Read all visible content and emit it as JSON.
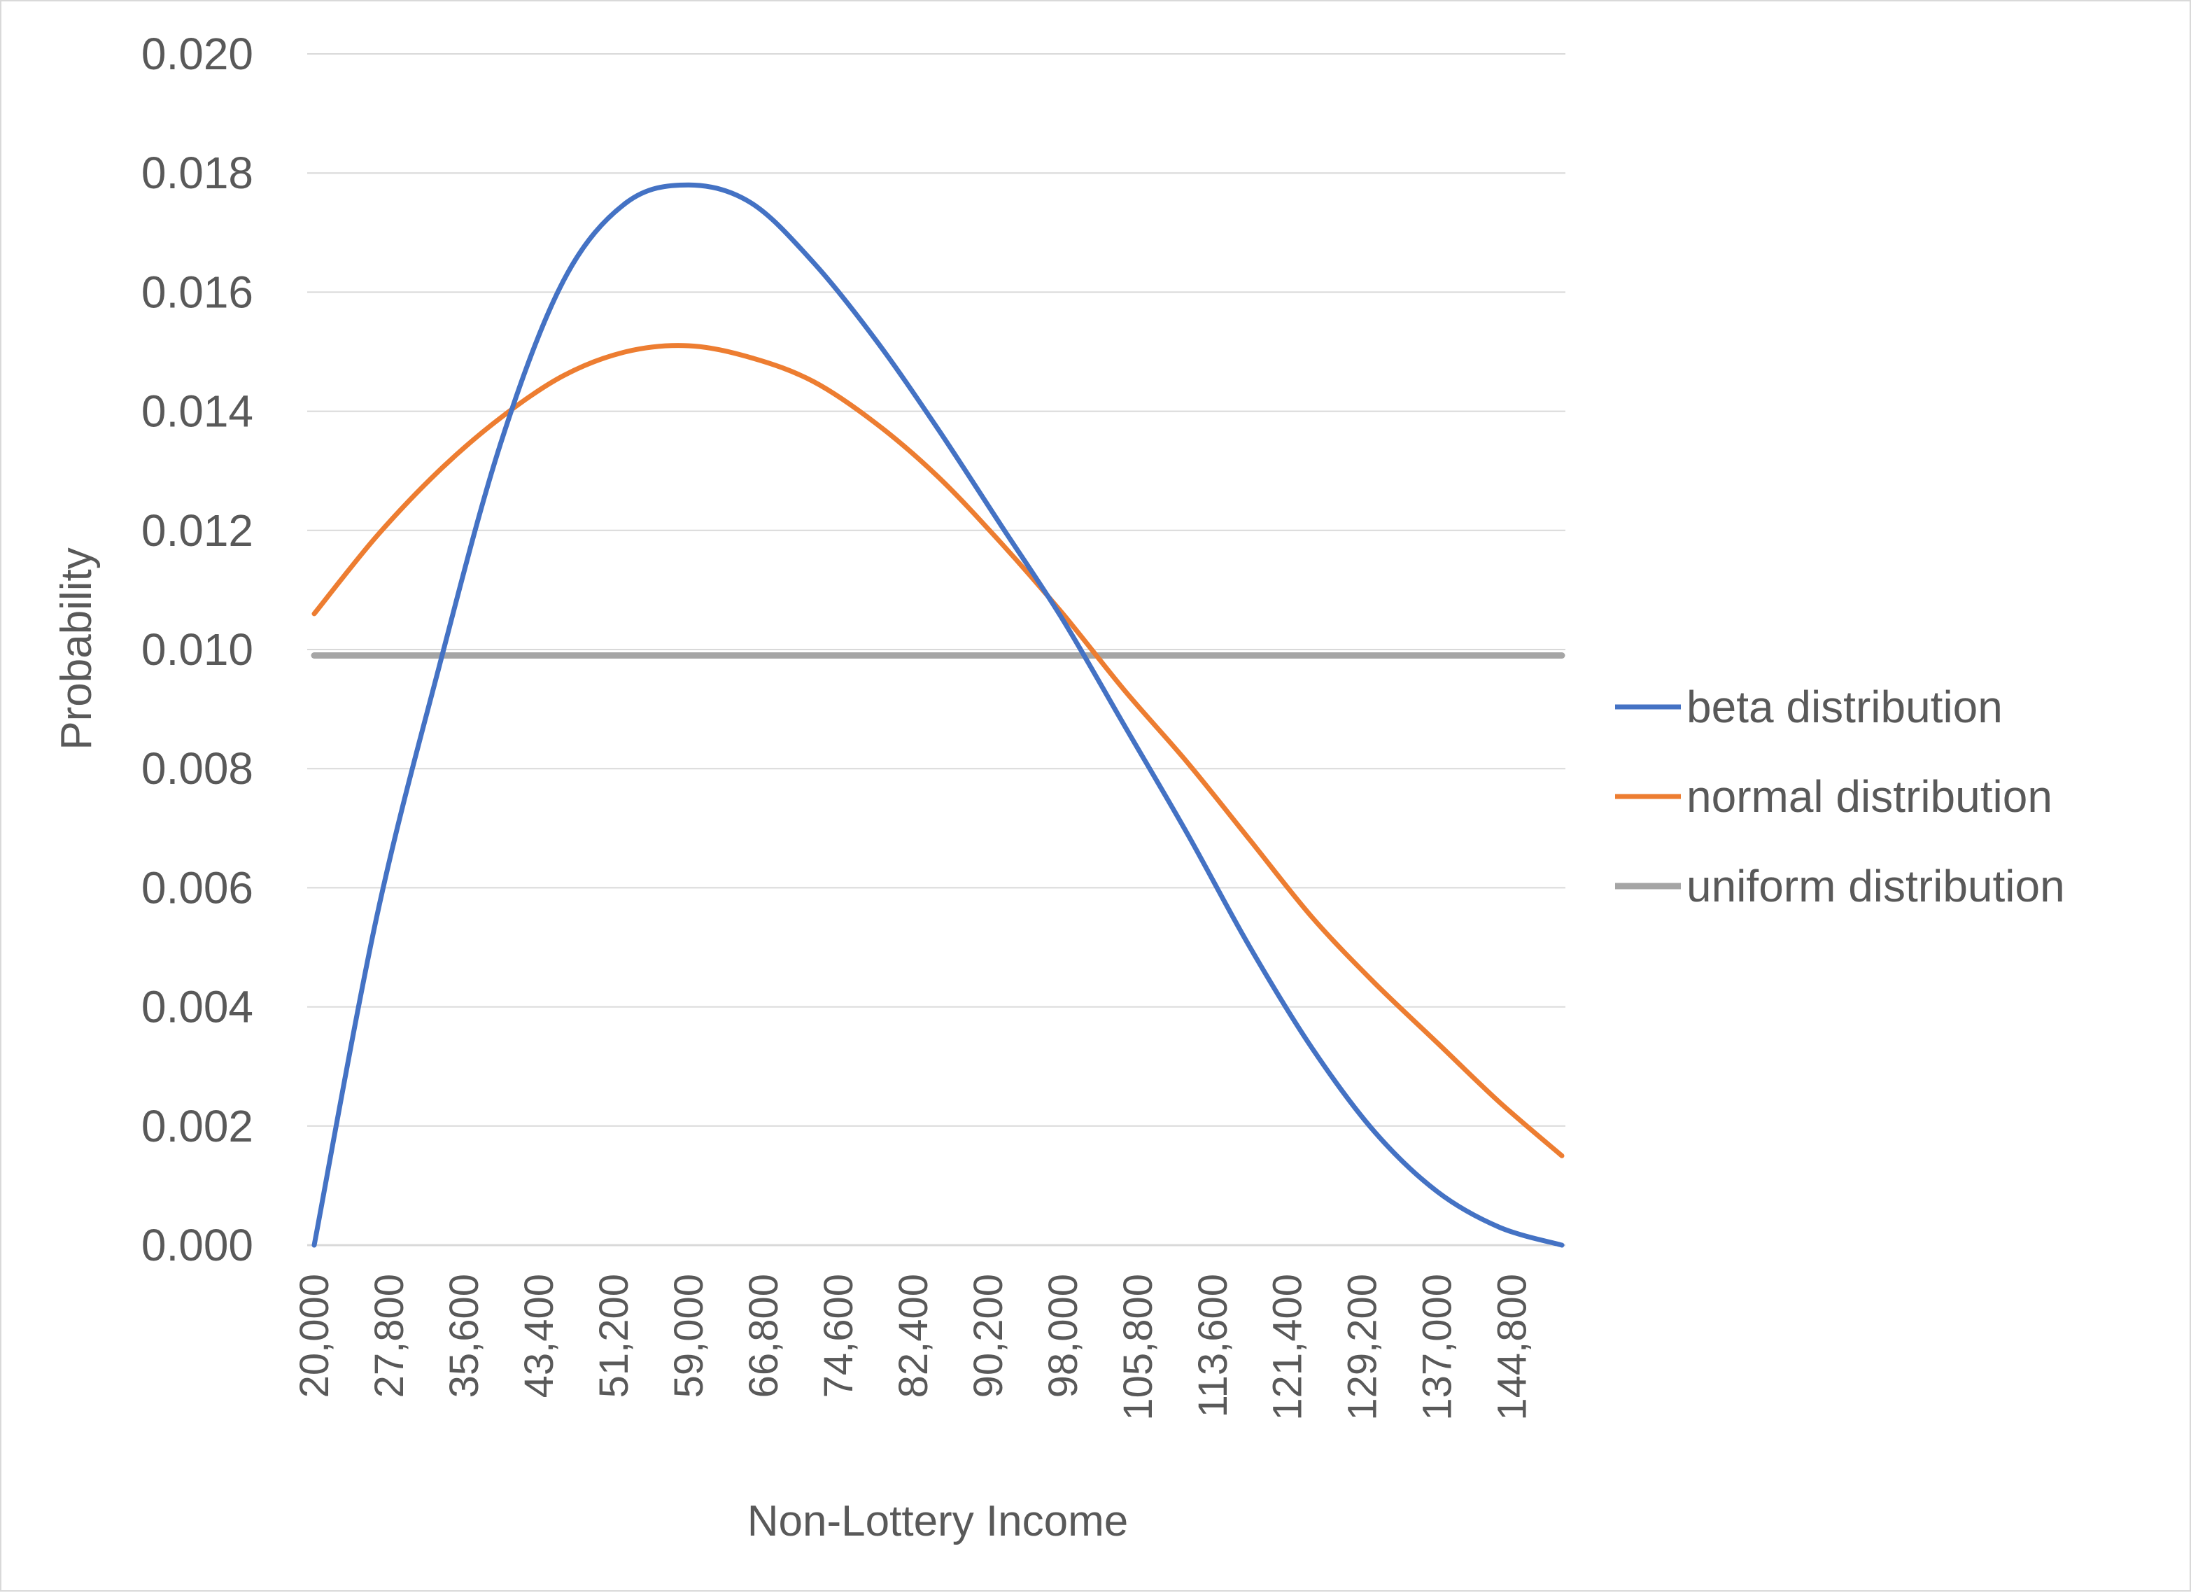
{
  "chart_data": {
    "type": "line",
    "title": "",
    "xlabel": "Non-Lottery Income",
    "ylabel": "Probability",
    "ylim": [
      0,
      0.02
    ],
    "yticks": [
      "0.000",
      "0.002",
      "0.004",
      "0.006",
      "0.008",
      "0.010",
      "0.012",
      "0.014",
      "0.016",
      "0.018",
      "0.020"
    ],
    "xlim": [
      20000,
      150000
    ],
    "xticks": [
      "20,000",
      "27,800",
      "35,600",
      "43,400",
      "51,200",
      "59,000",
      "66,800",
      "74,600",
      "82,400",
      "90,200",
      "98,000",
      "105,800",
      "113,600",
      "121,400",
      "129,200",
      "137,000",
      "144,800"
    ],
    "grid": true,
    "legend_position": "right",
    "x": [
      20000,
      26500,
      33000,
      39500,
      46000,
      52500,
      59000,
      65500,
      72000,
      78500,
      85000,
      91500,
      98000,
      104500,
      111000,
      117500,
      124000,
      130500,
      137000,
      143500,
      150000
    ],
    "series": [
      {
        "name": "beta distribution",
        "color": "#4472C4",
        "values": [
          0.0,
          0.0055,
          0.0097,
          0.0135,
          0.0162,
          0.0175,
          0.0178,
          0.0175,
          0.0165,
          0.0152,
          0.0137,
          0.0121,
          0.0105,
          0.0087,
          0.0069,
          0.005,
          0.0033,
          0.0019,
          0.0009,
          0.0003,
          0.0
        ]
      },
      {
        "name": "normal distribution",
        "color": "#ED7D31",
        "values": [
          0.0106,
          0.0119,
          0.013,
          0.0139,
          0.0146,
          0.015,
          0.0151,
          0.0149,
          0.0145,
          0.0138,
          0.0129,
          0.0118,
          0.0106,
          0.0093,
          0.0081,
          0.0068,
          0.0055,
          0.0044,
          0.0034,
          0.0024,
          0.0015
        ]
      },
      {
        "name": "uniform distribution",
        "color": "#A5A5A5",
        "values": [
          0.0099,
          0.0099,
          0.0099,
          0.0099,
          0.0099,
          0.0099,
          0.0099,
          0.0099,
          0.0099,
          0.0099,
          0.0099,
          0.0099,
          0.0099,
          0.0099,
          0.0099,
          0.0099,
          0.0099,
          0.0099,
          0.0099,
          0.0099,
          0.0099
        ]
      }
    ]
  }
}
